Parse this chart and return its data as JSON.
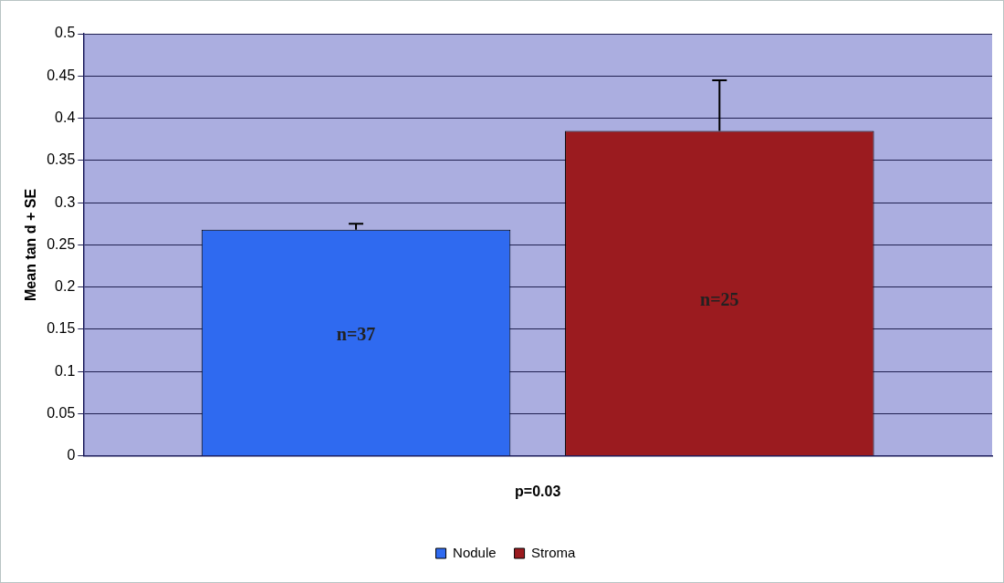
{
  "chart_data": {
    "type": "bar",
    "ylabel": "Mean tan d + SE",
    "categories": [
      "p=0.03"
    ],
    "series": [
      {
        "name": "Nodule",
        "color": "#2f6af0",
        "values": [
          0.268
        ],
        "errors": [
          [
            0.268,
            0.275
          ]
        ]
      },
      {
        "name": "Stroma",
        "color": "#9b1b1f",
        "values": [
          0.385
        ],
        "errors": [
          [
            0.385,
            0.445
          ]
        ]
      }
    ],
    "annotations": [
      "n=37",
      "n=25"
    ],
    "ylim": [
      0,
      0.5
    ],
    "yticks": [
      0,
      0.05,
      0.1,
      0.15,
      0.2,
      0.25,
      0.3,
      0.35,
      0.4,
      0.45,
      0.5
    ],
    "grid": "y",
    "legend": "bottom"
  }
}
